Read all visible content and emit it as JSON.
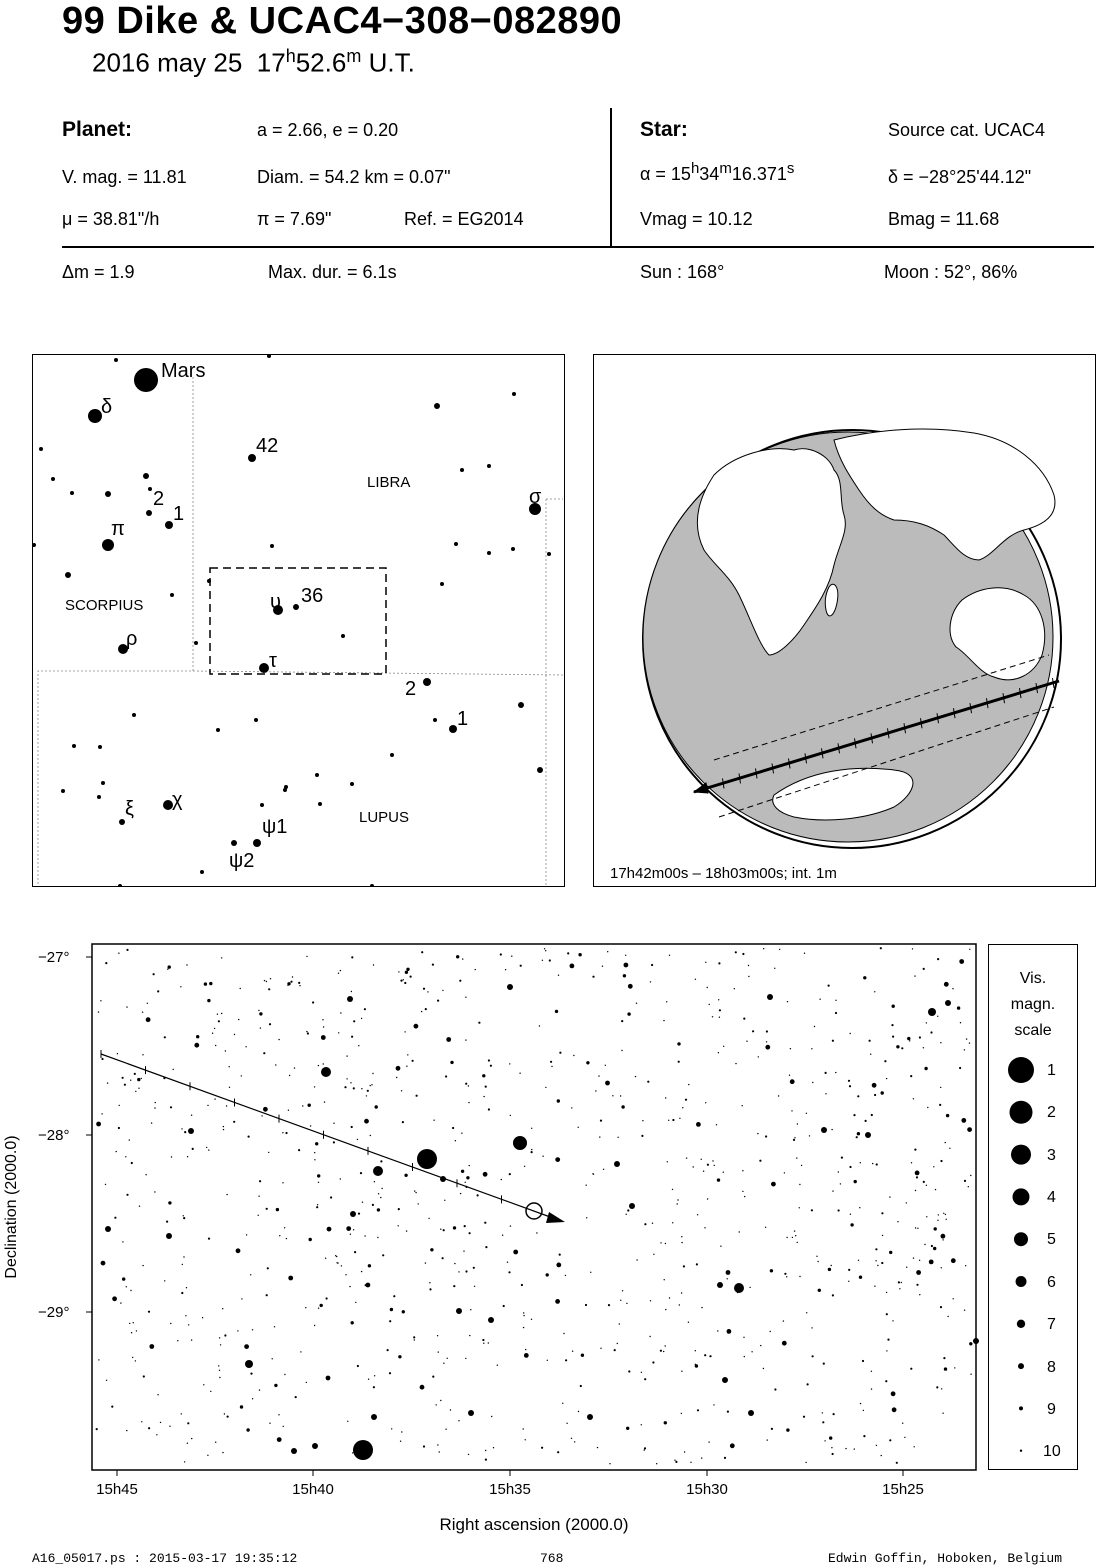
{
  "header": {
    "title": "99 Dike  &  UCAC4−308−082890",
    "date": "2016 may 25",
    "time_h": "17",
    "time_h_unit": "h",
    "time_m": "52.6",
    "time_m_unit": "m",
    "time_suffix": "U.T."
  },
  "planet": {
    "label": "Planet:",
    "orbit": "a = 2.66, e = 0.20",
    "vmag": "V. mag. = 11.81",
    "diam": "Diam. = 54.2 km = 0.07\"",
    "mu": "μ =  38.81\"/h",
    "pi": "π =  7.69\"",
    "ref": "Ref. = EG2014",
    "dm": "Δm = 1.9",
    "maxdur": "Max. dur. = 6.1s"
  },
  "star": {
    "label": "Star:",
    "source": "Source cat.  UCAC4",
    "alpha_prefix": "α = 15",
    "alpha_h": "h",
    "alpha_mid": "34",
    "alpha_m": "m",
    "alpha_sec": "16.371",
    "alpha_s": "s",
    "delta": "δ = −28°25'44.12\"",
    "vmag": "Vmag = 10.12",
    "bmag": "Bmag = 11.68",
    "sun": "Sun : 168°",
    "moon": "Moon :  52°, 86%"
  },
  "finder_chart": {
    "constellations": [
      "LIBRA",
      "SCORPIUS",
      "LUPUS"
    ],
    "labels": [
      "Mars",
      "δ",
      "42",
      "2",
      "1",
      "π",
      "σ",
      "υ",
      "36",
      "ρ",
      "τ",
      "2",
      "1",
      "ξ",
      "χ",
      "ψ1",
      "ψ2"
    ]
  },
  "globe": {
    "caption": "17h42m00s – 18h03m00s; int.  1m"
  },
  "star_chart": {
    "xlabel": "Right ascension (2000.0)",
    "ylabel": "Declination (2000.0)",
    "x_ticks": [
      "15h45",
      "15h40",
      "15h35",
      "15h30",
      "15h25"
    ],
    "y_ticks": [
      "−27°",
      "−28°",
      "−29°"
    ]
  },
  "mag_scale": {
    "title": [
      "Vis.",
      "magn.",
      "scale"
    ],
    "levels": [
      "1",
      "2",
      "3",
      "4",
      "5",
      "6",
      "7",
      "8",
      "9",
      "10"
    ]
  },
  "footer": {
    "file": "A16_05017.ps : 2015-03-17 19:35:12",
    "page": "768",
    "author": "Edwin Goffin, Hoboken, Belgium"
  }
}
